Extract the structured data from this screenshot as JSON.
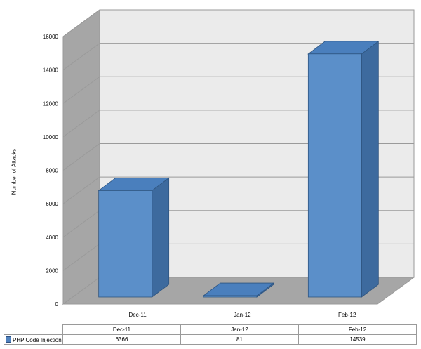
{
  "chart_data": {
    "type": "bar",
    "title": "",
    "ylabel": "Number of Attacks",
    "xlabel": "",
    "categories": [
      "Dec-11",
      "Jan-12",
      "Feb-12"
    ],
    "series": [
      {
        "name": "PHP Code Injection",
        "values": [
          6366,
          81,
          14539
        ],
        "color": "#5b8fc9"
      }
    ],
    "ylim": [
      0,
      16000
    ],
    "yticks": [
      "0",
      "2000",
      "4000",
      "6000",
      "8000",
      "10000",
      "12000",
      "14000",
      "16000"
    ],
    "grid": true,
    "three_d": true,
    "legend": "data-table"
  },
  "data_table": {
    "headers": [
      "Dec-11",
      "Jan-12",
      "Feb-12"
    ],
    "rows": [
      {
        "label": "PHP Code Injection",
        "values": [
          "6366",
          "81",
          "14539"
        ]
      }
    ]
  }
}
